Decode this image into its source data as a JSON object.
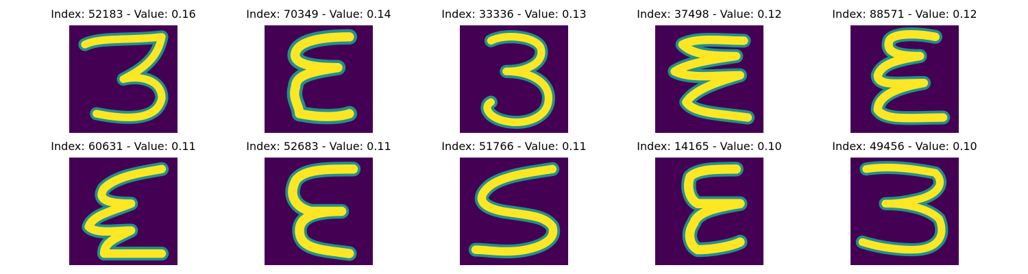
{
  "figure": {
    "panels": [
      {
        "index": "52183",
        "value": "0.16",
        "title": "Index: 52183 - Value: 0.16",
        "glyph": "three-icon"
      },
      {
        "index": "70349",
        "value": "0.14",
        "title": "Index: 70349 - Value: 0.14",
        "glyph": "epsilon-icon"
      },
      {
        "index": "33336",
        "value": "0.13",
        "title": "Index: 33336 - Value: 0.13",
        "glyph": "three-icon"
      },
      {
        "index": "37498",
        "value": "0.12",
        "title": "Index: 37498 - Value: 0.12",
        "glyph": "epsilon-zigzag-icon"
      },
      {
        "index": "88571",
        "value": "0.12",
        "title": "Index: 88571 - Value: 0.12",
        "glyph": "epsilon-icon"
      },
      {
        "index": "60631",
        "value": "0.11",
        "title": "Index: 60631 - Value: 0.11",
        "glyph": "epsilon-zigzag-icon"
      },
      {
        "index": "52683",
        "value": "0.11",
        "title": "Index: 52683 - Value: 0.11",
        "glyph": "epsilon-round-icon"
      },
      {
        "index": "51766",
        "value": "0.11",
        "title": "Index: 51766 - Value: 0.11",
        "glyph": "five-s-icon"
      },
      {
        "index": "14165",
        "value": "0.10",
        "title": "Index: 14165 - Value: 0.10",
        "glyph": "epsilon-icon"
      },
      {
        "index": "49456",
        "value": "0.10",
        "title": "Index: 49456 - Value: 0.10",
        "glyph": "three-icon"
      }
    ],
    "colors": {
      "background": "#440154",
      "stroke_edge": "#21918c",
      "stroke_core": "#fde725",
      "stroke_mid": "#5ec962"
    }
  }
}
